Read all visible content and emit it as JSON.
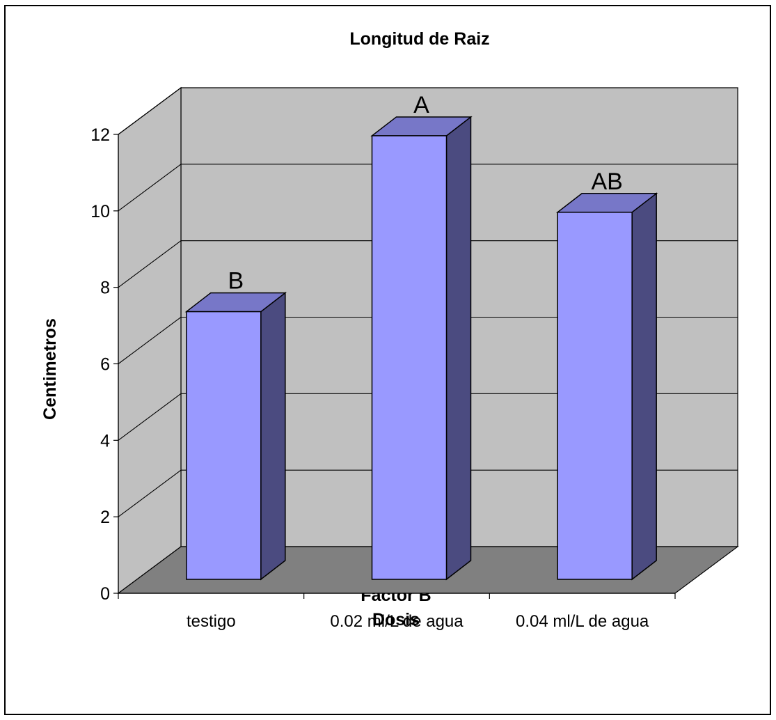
{
  "chart_data": {
    "type": "bar",
    "title": "Longitud de Raiz",
    "xlabel": [
      "Factor B",
      "Dosis"
    ],
    "ylabel": "Centimetros",
    "categories": [
      "testigo",
      "0.02 ml/L de agua",
      "0.04 ml/L de agua"
    ],
    "series": [
      {
        "values": [
          7.0,
          11.6,
          9.6
        ]
      }
    ],
    "bar_labels": [
      "B",
      "A",
      "AB"
    ],
    "ylim": [
      0,
      12
    ],
    "yticks": [
      "0",
      "2",
      "4",
      "6",
      "8",
      "10",
      "12"
    ],
    "grid": true,
    "three_d": true,
    "colors": {
      "bar_front": "#9999ff",
      "bar_top": "#7777c8",
      "bar_side": "#4b4b80",
      "wall": "#c0c0c0",
      "floor": "#808080"
    }
  }
}
